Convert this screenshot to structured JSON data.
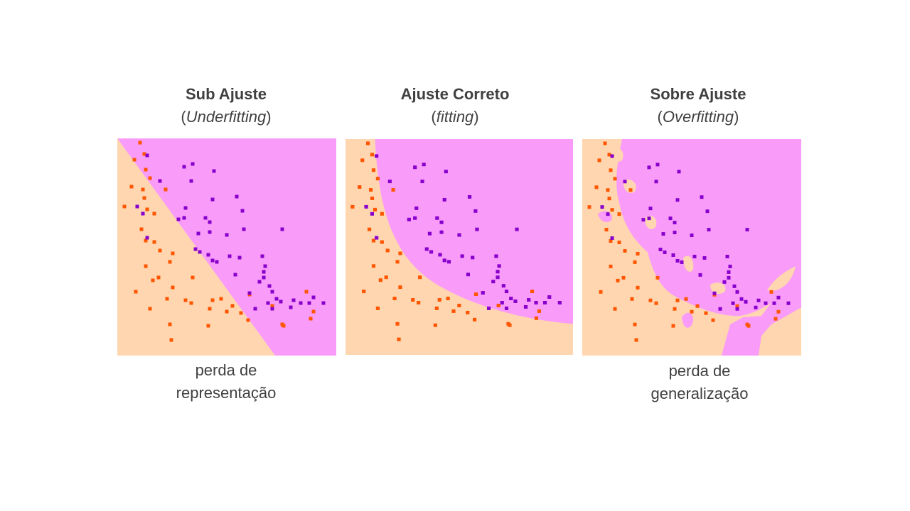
{
  "colors": {
    "class_a_region": "#ffd6b0",
    "class_b_region": "#f99cf9",
    "class_a_point": "#ff5500",
    "class_b_point": "#8800cc"
  },
  "panels": [
    {
      "title": "Sub Ajuste",
      "subtitle_open": "(",
      "subtitle_italic": "Underfitting",
      "subtitle_close": ")",
      "caption_line1": "perda de",
      "caption_line2": "representação"
    },
    {
      "title": "Ajuste Correto",
      "subtitle_open": "(",
      "subtitle_italic": "fitting",
      "subtitle_close": ")",
      "caption_line1": "",
      "caption_line2": ""
    },
    {
      "title": "Sobre Ajuste",
      "subtitle_open": "(",
      "subtitle_italic": "Overfitting",
      "subtitle_close": ")",
      "caption_line1": "perda de",
      "caption_line2": "generalização"
    }
  ]
}
